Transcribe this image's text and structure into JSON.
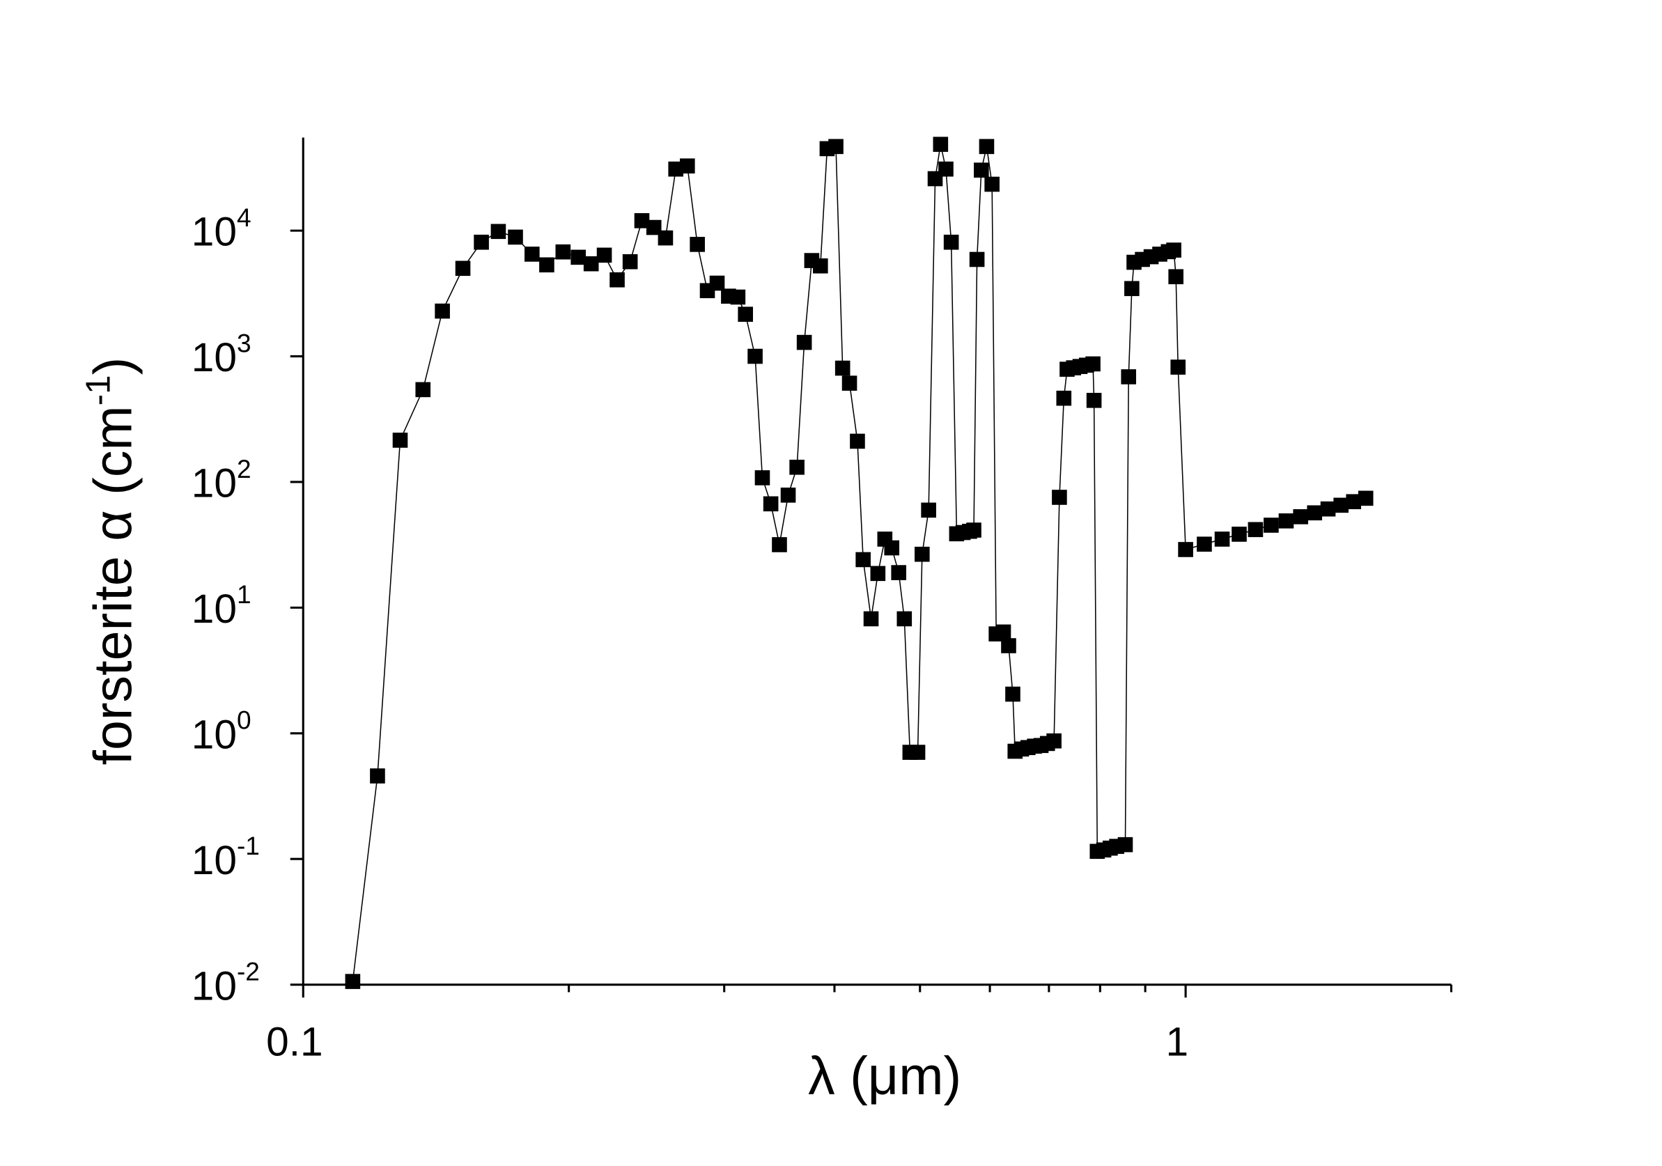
{
  "chart_data": {
    "type": "line",
    "xlabel": "λ (μm)",
    "ylabel": "forsterite α (cm",
    "ylabel_sup": "-1",
    "ylabel_end": ")",
    "xscale": "log",
    "yscale": "log",
    "xlim": [
      0.1,
      2
    ],
    "ylim": [
      0.01,
      55000
    ],
    "xticks": [
      0.1,
      1
    ],
    "xticks_minor": [
      0.2,
      0.3,
      0.4,
      0.5,
      0.6,
      0.7,
      0.8,
      0.9,
      2
    ],
    "yticks": [
      {
        "value": 0.01,
        "label": "10",
        "sup": "-2"
      },
      {
        "value": 0.1,
        "label": "10",
        "sup": "-1"
      },
      {
        "value": 1,
        "label": "10",
        "sup": "0"
      },
      {
        "value": 10,
        "label": "10",
        "sup": "1"
      },
      {
        "value": 100,
        "label": "10",
        "sup": "2"
      },
      {
        "value": 1000,
        "label": "10",
        "sup": "3"
      },
      {
        "value": 10000,
        "label": "10",
        "sup": "4"
      }
    ],
    "marker": "square",
    "x": [
      0.1138,
      0.1214,
      0.1288,
      0.1367,
      0.1438,
      0.1517,
      0.1592,
      0.1664,
      0.174,
      0.1817,
      0.1888,
      0.197,
      0.205,
      0.212,
      0.2194,
      0.2269,
      0.2347,
      0.242,
      0.2497,
      0.2574,
      0.2644,
      0.2725,
      0.2797,
      0.2871,
      0.2945,
      0.3034,
      0.3109,
      0.3171,
      0.3252,
      0.3314,
      0.3388,
      0.3465,
      0.3545,
      0.3627,
      0.3697,
      0.377,
      0.3856,
      0.3924,
      0.4015,
      0.4086,
      0.416,
      0.4247,
      0.4311,
      0.4401,
      0.448,
      0.4562,
      0.4645,
      0.473,
      0.48,
      0.4871,
      0.4971,
      0.5028,
      0.5114,
      0.5202,
      0.5276,
      0.535,
      0.5425,
      0.5502,
      0.5595,
      0.569,
      0.5754,
      0.5802,
      0.5868,
      0.595,
      0.6034,
      0.61,
      0.6216,
      0.6301,
      0.637,
      0.6408,
      0.6517,
      0.6628,
      0.6741,
      0.6857,
      0.6973,
      0.7093,
      0.7194,
      0.7278,
      0.734,
      0.7465,
      0.7592,
      0.7721,
      0.7852,
      0.7874,
      0.7941,
      0.8077,
      0.8214,
      0.8354,
      0.8543,
      0.8617,
      0.869,
      0.874,
      0.8934,
      0.9139,
      0.9348,
      0.9559,
      0.9696,
      0.975,
      0.9804,
      1.0,
      1.05,
      1.1,
      1.15,
      1.2,
      1.25,
      1.3,
      1.35,
      1.4,
      1.45,
      1.5,
      1.55,
      1.6
    ],
    "series": [
      {
        "color": "#000000",
        "values": [
          0.0106,
          0.458,
          215,
          543,
          2290,
          5010,
          8090,
          9850,
          8880,
          6500,
          5340,
          6770,
          6140,
          5450,
          6380,
          4060,
          5660,
          12000,
          10600,
          8750,
          30900,
          32700,
          7770,
          3330,
          3820,
          3010,
          2960,
          2160,
          1000,
          108,
          67,
          31.7,
          78.6,
          131,
          1290,
          5780,
          5240,
          44900,
          46700,
          805,
          611,
          211,
          24.1,
          8.15,
          18.7,
          35.1,
          29.9,
          19.0,
          8.15,
          0.706,
          0.706,
          26.6,
          59.7,
          25900,
          48600,
          30900,
          8090,
          38.7,
          39.6,
          40.5,
          41.4,
          5900,
          30300,
          46700,
          23400,
          6.18,
          6.4,
          4.98,
          2.05,
          0.72,
          0.75,
          0.77,
          0.79,
          0.8,
          0.83,
          0.87,
          75.5,
          464,
          789,
          810,
          830,
          850,
          870,
          446,
          0.115,
          0.118,
          0.122,
          0.126,
          0.13,
          687,
          3460,
          5600,
          5900,
          6200,
          6500,
          6800,
          7000,
          4300,
          820,
          29.0,
          32.0,
          35.1,
          38.4,
          41.8,
          45.3,
          49.0,
          52.9,
          56.8,
          61.0,
          65.3,
          69.7,
          74.2
        ]
      }
    ]
  }
}
